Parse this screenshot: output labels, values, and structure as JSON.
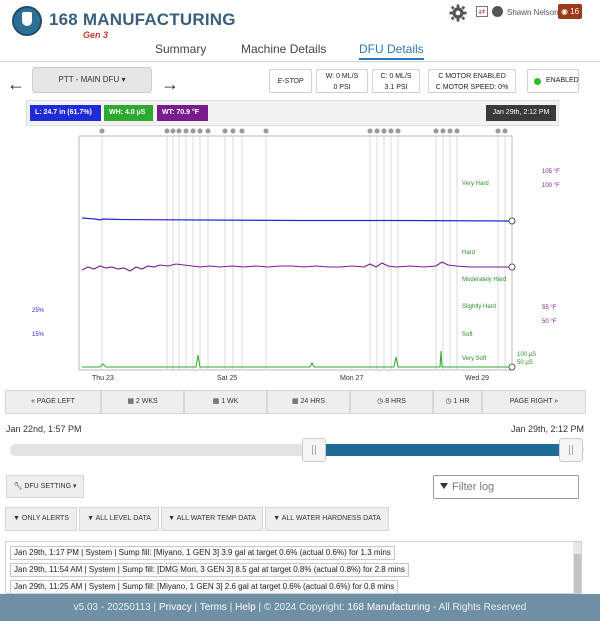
{
  "header": {
    "brand": "168 MANUFACTURING",
    "generation": "Gen 3",
    "user_name": "Shawn Nelson",
    "notification_count": "16"
  },
  "tabs": [
    {
      "label": "Summary",
      "active": false
    },
    {
      "label": "Machine Details",
      "active": false
    },
    {
      "label": "DFU Details",
      "active": true
    }
  ],
  "controls": {
    "device_select": "PTT - MAIN DFU",
    "estop": "E-STOP",
    "w_flow": "W: 0 ML/S",
    "w_pressure": "0 PSI",
    "c_flow": "C: 0 ML/S",
    "c_pressure": "3.1 PSI",
    "motor_status": "C MOTOR ENABLED",
    "motor_speed": "C MOTOR SPEED: 0%",
    "enabled_status": "ENABLED"
  },
  "legend": {
    "level": "L: 24.7 in (61.7%)",
    "hardness": "WH: 4.0 µS",
    "temperature": "WT: 70.9 °F",
    "timestamp": "Jan 29th, 2:12 PM"
  },
  "colors": {
    "level": "#1e2bd6",
    "hardness": "#2fa82f",
    "temperature": "#7a1d8c",
    "accent": "#2a78b5",
    "range_fill": "#1e6b96",
    "footer_bg": "#6f8fa5"
  },
  "chart_data": {
    "type": "line",
    "x_ticks": [
      "Thu 23",
      "Sat 25",
      "Mon 27",
      "Wed 29"
    ],
    "left_axis_labels": [
      "25%",
      "15%"
    ],
    "hardness_zones": [
      "Very Hard",
      "Hard",
      "Moderately Hard",
      "Slightly Hard",
      "Soft",
      "Very Soft"
    ],
    "temp_labels": [
      "105 °F",
      "100 °F",
      "55 °F",
      "50 °F"
    ],
    "conductivity_labels": [
      "100 µS",
      "50 µS"
    ],
    "series": [
      {
        "name": "L",
        "color": "#1e2bd6",
        "values": [
          62.5,
          62.2,
          61.8,
          61.8,
          61.7,
          61.7,
          61.7,
          61.7,
          61.7
        ]
      },
      {
        "name": "WT",
        "color": "#7a1d8c",
        "values": [
          71.5,
          71.2,
          71.8,
          71.4,
          71.2,
          71.0,
          71.3,
          71.1,
          70.9
        ]
      },
      {
        "name": "WH",
        "color": "#2fa82f",
        "values": [
          4.0,
          4.0,
          4.0,
          4.0,
          4.0,
          4.0,
          4.0,
          4.0,
          4.0
        ]
      }
    ]
  },
  "page_nav": {
    "page_left": "PAGE LEFT",
    "two_weeks": "2 WKS",
    "one_week": "1 WK",
    "hours_24": "24 HRS",
    "hours_8": "8 HRS",
    "hour_1": "1 HR",
    "page_right": "PAGE RIGHT"
  },
  "range": {
    "start": "Jan 22nd, 1:57 PM",
    "end": "Jan 29th, 2:12 PM",
    "selected_start_fraction": 0.53,
    "selected_end_fraction": 0.98
  },
  "settings": {
    "dfu_setting": "DFU SETTING",
    "filter_placeholder": "Filter log"
  },
  "log_filters": {
    "only_alerts": "ONLY ALERTS",
    "all_level": "ALL LEVEL DATA",
    "all_water_temp": "ALL WATER TEMP DATA",
    "all_water_hardness": "ALL WATER HARDNESS DATA"
  },
  "log": [
    "Jan 29th, 1:17 PM   |   System   |   Sump fill: [Miyano, 1 GEN 3] 3.9 gal at target 0.6% (actual 0.6%) for 1.3 mins",
    "Jan 29th, 11:54 AM   |   System   |   Sump fill: [DMG Mori, 3 GEN 3] 8.5 gal at target 0.8% (actual 0.8%) for 2.8 mins",
    "Jan 29th, 11:25 AM   |   System   |   Sump fill: [Miyano, 1 GEN 3] 2.6 gal at target 0.6% (actual 0.6%) for 0.8 mins"
  ],
  "footer": {
    "version": "v5.03 - 20250113",
    "privacy": "Privacy",
    "terms": "Terms",
    "help": "Help",
    "copyright": "© 2024 Copyright:",
    "company": "168 Manufacturing",
    "rights": "- All Rights Reserved"
  }
}
